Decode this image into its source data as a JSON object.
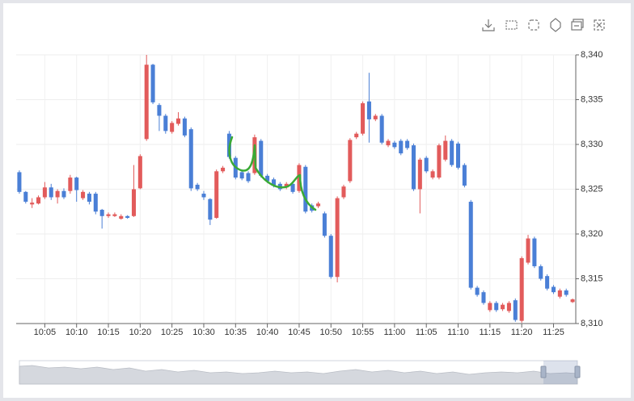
{
  "chart_data": {
    "type": "candlestick",
    "categories": [
      null,
      null,
      null,
      null,
      "10:05",
      null,
      null,
      null,
      null,
      "10:10",
      null,
      null,
      null,
      null,
      "10:15",
      null,
      null,
      null,
      null,
      "10:20",
      null,
      null,
      null,
      null,
      "10:25",
      null,
      null,
      null,
      null,
      "10:30",
      null,
      null,
      null,
      null,
      "10:35",
      null,
      null,
      null,
      null,
      "10:40",
      null,
      null,
      null,
      null,
      "10:45",
      null,
      null,
      null,
      null,
      "10:50",
      null,
      null,
      null,
      null,
      "10:55",
      null,
      null,
      null,
      null,
      "11:00",
      null,
      null,
      null,
      null,
      "11:05",
      null,
      null,
      null,
      null,
      "11:10",
      null,
      null,
      null,
      null,
      "11:15",
      null,
      null,
      null,
      null,
      "11:20",
      null,
      null,
      null,
      null,
      "11:25",
      null,
      null,
      null
    ],
    "open": [
      8326.9,
      8324.7,
      8323.3,
      8323.4,
      8324.1,
      8325.2,
      8324.1,
      8324.8,
      8324.8,
      8326.3,
      8324.0,
      8324.5,
      8324.5,
      8322.7,
      8322.0,
      8322.0,
      8321.7,
      8322.0,
      8322.0,
      8325.1,
      8330.6,
      8338.9,
      8334.4,
      8333.2,
      8331.4,
      8332.3,
      8332.9,
      8331.7,
      8325.5,
      8324.5,
      8323.9,
      8321.8,
      8327.0,
      8331.2,
      8328.5,
      8326.9,
      8326.8,
      8326.8,
      8330.4,
      8326.5,
      8326.1,
      8325.6,
      8325.2,
      8325.6,
      8324.8,
      8327.5,
      8323.2,
      8323.1,
      8322.3,
      8319.8,
      8315.2,
      8324.1,
      8325.9,
      8330.8,
      8331.2,
      8334.8,
      8332.8,
      8333.2,
      8329.9,
      8330.2,
      8330.4,
      8330.4,
      8329.9,
      8325.0,
      8328.5,
      8326.3,
      8326.3,
      8328.3,
      8330.4,
      8330.1,
      8327.7,
      8323.6,
      8314.0,
      8313.5,
      8311.5,
      8312.3,
      8311.6,
      8311.4,
      8312.6,
      8310.3,
      8316.8,
      8319.5,
      8316.4,
      8315.3,
      8314.1,
      8313.0,
      8313.7,
      8312.4
    ],
    "close": [
      8324.7,
      8323.6,
      8323.5,
      8324.1,
      8325.2,
      8324.1,
      8324.8,
      8324.1,
      8326.3,
      8324.9,
      8324.7,
      8323.6,
      8322.5,
      8322.0,
      8322.2,
      8322.2,
      8322.0,
      8321.8,
      8325.0,
      8328.7,
      8338.9,
      8334.7,
      8333.2,
      8331.5,
      8332.4,
      8332.9,
      8331.0,
      8325.1,
      8325.0,
      8324.1,
      8321.6,
      8327.0,
      8327.4,
      8328.6,
      8326.3,
      8326.2,
      8325.9,
      8330.8,
      8326.5,
      8325.9,
      8325.4,
      8325.0,
      8325.6,
      8324.7,
      8327.7,
      8322.5,
      8322.6,
      8323.4,
      8319.8,
      8315.2,
      8324.0,
      8325.3,
      8330.5,
      8331.2,
      8334.6,
      8332.8,
      8333.2,
      8330.2,
      8330.4,
      8329.7,
      8329.0,
      8329.6,
      8325.0,
      8328.3,
      8327.0,
      8327.0,
      8329.9,
      8330.4,
      8327.7,
      8327.4,
      8325.4,
      8314.0,
      8313.2,
      8312.3,
      8312.3,
      8311.5,
      8312.1,
      8312.3,
      8310.4,
      8317.3,
      8319.5,
      8316.4,
      8315.0,
      8313.9,
      8313.5,
      8313.7,
      8313.2,
      8312.7
    ],
    "low": [
      8324.5,
      8323.4,
      8322.9,
      8323.3,
      8323.9,
      8323.8,
      8323.4,
      8323.9,
      8324.5,
      8323.6,
      8323.8,
      8323.3,
      8322.2,
      8320.6,
      8321.8,
      8321.9,
      8321.6,
      8321.7,
      8321.9,
      8325.0,
      8330.4,
      8334.5,
      8331.5,
      8331.2,
      8331.2,
      8332.1,
      8330.8,
      8324.8,
      8324.8,
      8323.8,
      8321.0,
      8321.7,
      8326.8,
      8328.4,
      8326.1,
      8326.0,
      8325.7,
      8326.6,
      8326.3,
      8325.7,
      8325.2,
      8324.8,
      8325.0,
      8324.5,
      8324.6,
      8322.3,
      8322.4,
      8322.9,
      8319.6,
      8315.0,
      8314.6,
      8323.9,
      8325.7,
      8330.6,
      8331.0,
      8330.2,
      8332.6,
      8330.0,
      8329.7,
      8329.5,
      8328.8,
      8329.4,
      8324.8,
      8322.3,
      8326.8,
      8326.1,
      8326.1,
      8328.1,
      8327.5,
      8327.2,
      8325.2,
      8313.8,
      8313.0,
      8312.1,
      8311.3,
      8311.3,
      8311.4,
      8311.2,
      8310.2,
      8310.1,
      8316.6,
      8316.2,
      8314.8,
      8313.7,
      8313.3,
      8312.8,
      8313.0,
      8312.3
    ],
    "high": [
      8327.1,
      8324.8,
      8324.0,
      8324.3,
      8325.8,
      8325.6,
      8325.0,
      8325.1,
      8326.6,
      8326.4,
      8324.9,
      8324.7,
      8324.7,
      8322.8,
      8322.4,
      8322.4,
      8322.2,
      8322.1,
      8327.7,
      8328.9,
      8340.0,
      8339.0,
      8334.6,
      8333.4,
      8332.6,
      8333.6,
      8333.1,
      8331.9,
      8325.7,
      8324.8,
      8324.0,
      8327.2,
      8327.6,
      8331.5,
      8328.7,
      8327.1,
      8327.0,
      8331.1,
      8330.6,
      8326.7,
      8326.3,
      8325.8,
      8325.8,
      8325.8,
      8327.9,
      8327.7,
      8323.4,
      8323.6,
      8322.5,
      8320.0,
      8324.2,
      8325.5,
      8330.7,
      8331.4,
      8334.8,
      8338.0,
      8333.4,
      8333.4,
      8330.6,
      8330.4,
      8330.6,
      8330.6,
      8330.1,
      8328.5,
      8328.7,
      8327.2,
      8330.1,
      8331.0,
      8330.6,
      8330.3,
      8327.9,
      8323.8,
      8314.2,
      8313.7,
      8312.5,
      8312.5,
      8312.3,
      8312.5,
      8312.8,
      8317.5,
      8319.9,
      8319.7,
      8316.6,
      8315.5,
      8314.3,
      8313.9,
      8313.9,
      8312.8
    ],
    "up_color": "#e25b5b",
    "down_color": "#4a7fd6",
    "ylim": [
      8310,
      8340
    ],
    "yticks": [
      {
        "value": 8310,
        "label": "8,310"
      },
      {
        "value": 8315,
        "label": "8,315"
      },
      {
        "value": 8320,
        "label": "8,320"
      },
      {
        "value": 8325,
        "label": "8,325"
      },
      {
        "value": 8330,
        "label": "8,330"
      },
      {
        "value": 8335,
        "label": "8,335"
      },
      {
        "value": 8340,
        "label": "8,340"
      }
    ],
    "grid": true
  }
}
